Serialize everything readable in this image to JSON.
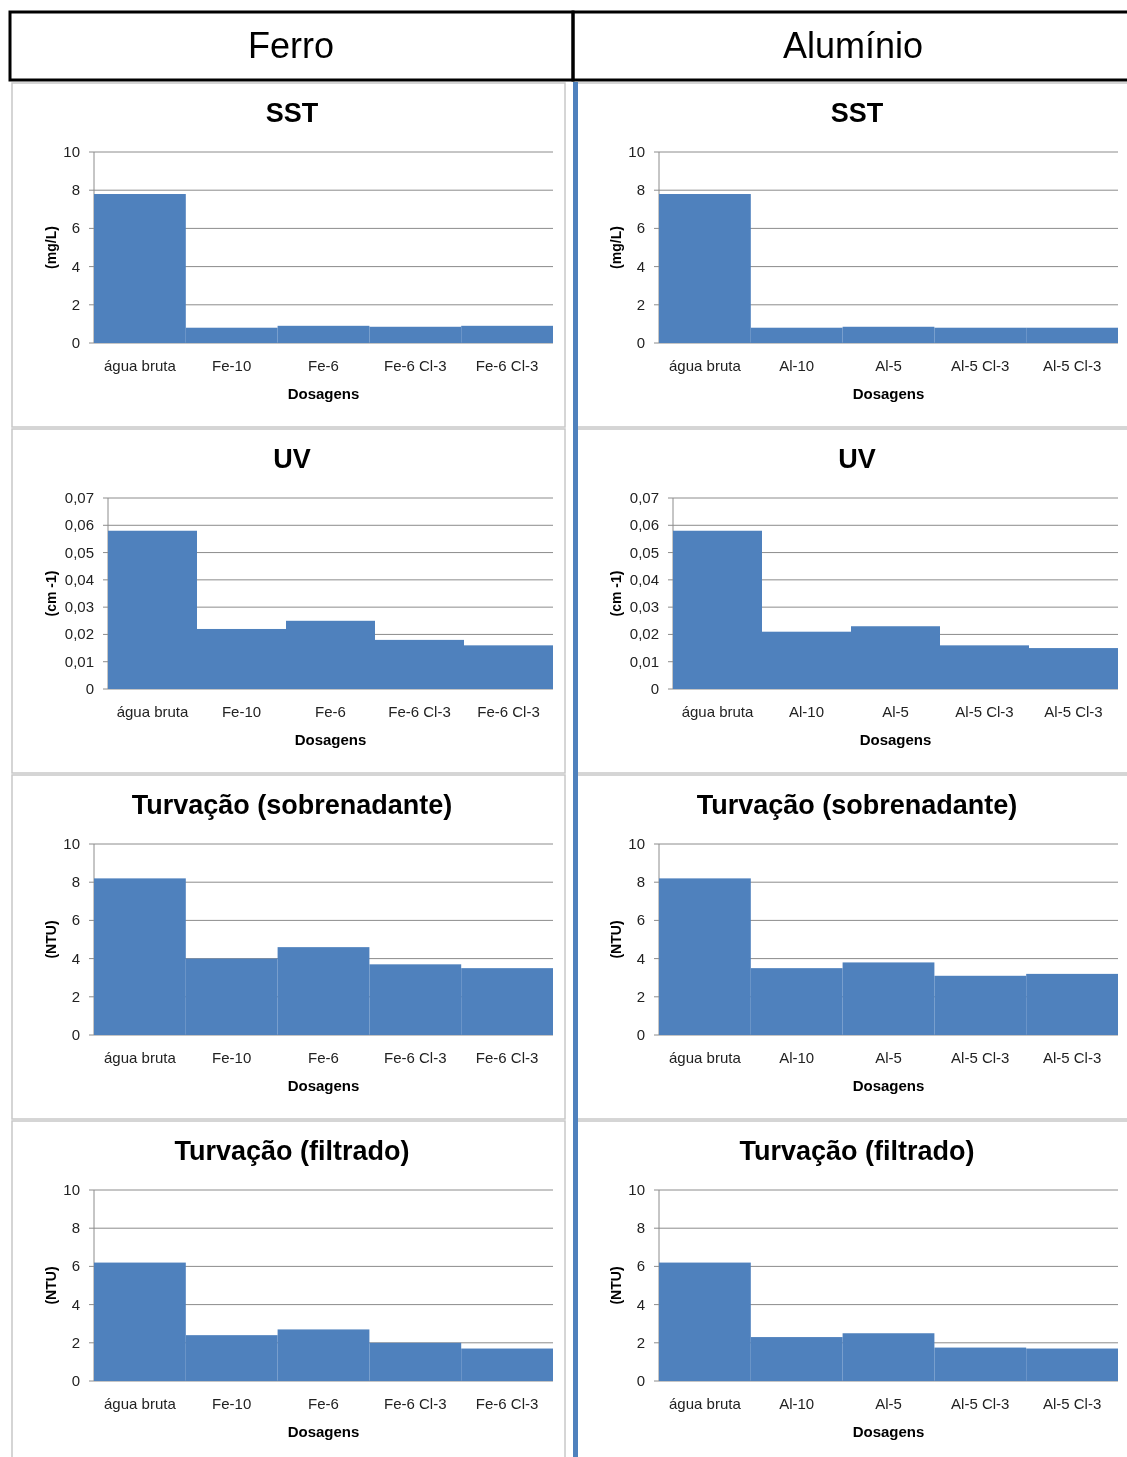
{
  "chart_data": [
    {
      "type": "other",
      "title": "Ferro"
    },
    {
      "type": "other",
      "title": "Alumínio"
    },
    {
      "type": "bar",
      "title": "SST",
      "ylabel": "(mg/L)",
      "xlabel": "Dosagens",
      "categories": [
        "água bruta",
        "Fe-10",
        "Fe-6",
        "Fe-6 Cl-3",
        "Fe-6 Cl-3"
      ],
      "values": [
        7.8,
        0.8,
        0.9,
        0.85,
        0.9
      ],
      "color": "#4f81bd",
      "ylim": [
        0,
        10
      ],
      "yticks": [
        0,
        2,
        4,
        6,
        8,
        10
      ],
      "grid": "y"
    },
    {
      "type": "bar",
      "title": "SST",
      "ylabel": "(mg/L)",
      "xlabel": "Dosagens",
      "categories": [
        "água bruta",
        "Al-10",
        "Al-5",
        "Al-5 Cl-3",
        "Al-5 Cl-3"
      ],
      "values": [
        7.8,
        0.8,
        0.85,
        0.8,
        0.8
      ],
      "color": "#4f81bd",
      "ylim": [
        0,
        10
      ],
      "yticks": [
        0,
        2,
        4,
        6,
        8,
        10
      ],
      "grid": "y"
    },
    {
      "type": "bar",
      "title": "UV",
      "ylabel": "(cm -1)",
      "xlabel": "Dosagens",
      "categories": [
        "água bruta",
        "Fe-10",
        "Fe-6",
        "Fe-6 Cl-3",
        "Fe-6 Cl-3"
      ],
      "values": [
        0.058,
        0.022,
        0.025,
        0.018,
        0.016
      ],
      "color": "#4f81bd",
      "ylim": [
        0,
        0.07
      ],
      "yticks": [
        0,
        {
          "value": 0.01,
          "label": "0,01"
        },
        {
          "value": 0.02,
          "label": "0,02"
        },
        {
          "value": 0.03,
          "label": "0,03"
        },
        {
          "value": 0.04,
          "label": "0,04"
        },
        {
          "value": 0.05,
          "label": "0,05"
        },
        {
          "value": 0.06,
          "label": "0,06"
        },
        {
          "value": 0.07,
          "label": "0,07"
        }
      ],
      "grid": "y"
    },
    {
      "type": "bar",
      "title": "UV",
      "ylabel": "(cm -1)",
      "xlabel": "Dosagens",
      "categories": [
        "água bruta",
        "Al-10",
        "Al-5",
        "Al-5 Cl-3",
        "Al-5 Cl-3"
      ],
      "values": [
        0.058,
        0.021,
        0.023,
        0.016,
        0.015
      ],
      "color": "#4f81bd",
      "ylim": [
        0,
        0.07
      ],
      "yticks": [
        0,
        {
          "value": 0.01,
          "label": "0,01"
        },
        {
          "value": 0.02,
          "label": "0,02"
        },
        {
          "value": 0.03,
          "label": "0,03"
        },
        {
          "value": 0.04,
          "label": "0,04"
        },
        {
          "value": 0.05,
          "label": "0,05"
        },
        {
          "value": 0.06,
          "label": "0,06"
        },
        {
          "value": 0.07,
          "label": "0,07"
        }
      ],
      "grid": "y"
    },
    {
      "type": "bar",
      "title": "Turvação (sobrenadante)",
      "ylabel": "(NTU)",
      "xlabel": "Dosagens",
      "categories": [
        "água bruta",
        "Fe-10",
        "Fe-6",
        "Fe-6 Cl-3",
        "Fe-6 Cl-3"
      ],
      "values": [
        8.2,
        4.0,
        4.6,
        3.7,
        3.5
      ],
      "color": "#4f81bd",
      "ylim": [
        0,
        10
      ],
      "yticks": [
        0,
        2,
        4,
        6,
        8,
        10
      ],
      "grid": "y"
    },
    {
      "type": "bar",
      "title": "Turvação (sobrenadante)",
      "ylabel": "(NTU)",
      "xlabel": "Dosagens",
      "categories": [
        "água bruta",
        "Al-10",
        "Al-5",
        "Al-5 Cl-3",
        "Al-5 Cl-3"
      ],
      "values": [
        8.2,
        3.5,
        3.8,
        3.1,
        3.2
      ],
      "color": "#4f81bd",
      "ylim": [
        0,
        10
      ],
      "yticks": [
        0,
        2,
        4,
        6,
        8,
        10
      ],
      "grid": "y"
    },
    {
      "type": "bar",
      "title": "Turvação (filtrado)",
      "ylabel": "(NTU)",
      "xlabel": "Dosagens",
      "categories": [
        "água bruta",
        "Fe-10",
        "Fe-6",
        "Fe-6 Cl-3",
        "Fe-6 Cl-3"
      ],
      "values": [
        6.2,
        2.4,
        2.7,
        2.0,
        1.7
      ],
      "color": "#4f81bd",
      "ylim": [
        0,
        10
      ],
      "yticks": [
        0,
        2,
        4,
        6,
        8,
        10
      ],
      "grid": "y"
    },
    {
      "type": "bar",
      "title": "Turvação (filtrado)",
      "ylabel": "(NTU)",
      "xlabel": "Dosagens",
      "categories": [
        "água bruta",
        "Al-10",
        "Al-5",
        "Al-5 Cl-3",
        "Al-5 Cl-3"
      ],
      "values": [
        6.2,
        2.3,
        2.5,
        1.75,
        1.7
      ],
      "color": "#4f81bd",
      "ylim": [
        0,
        10
      ],
      "yticks": [
        0,
        2,
        4,
        6,
        8,
        10
      ],
      "grid": "y"
    }
  ]
}
